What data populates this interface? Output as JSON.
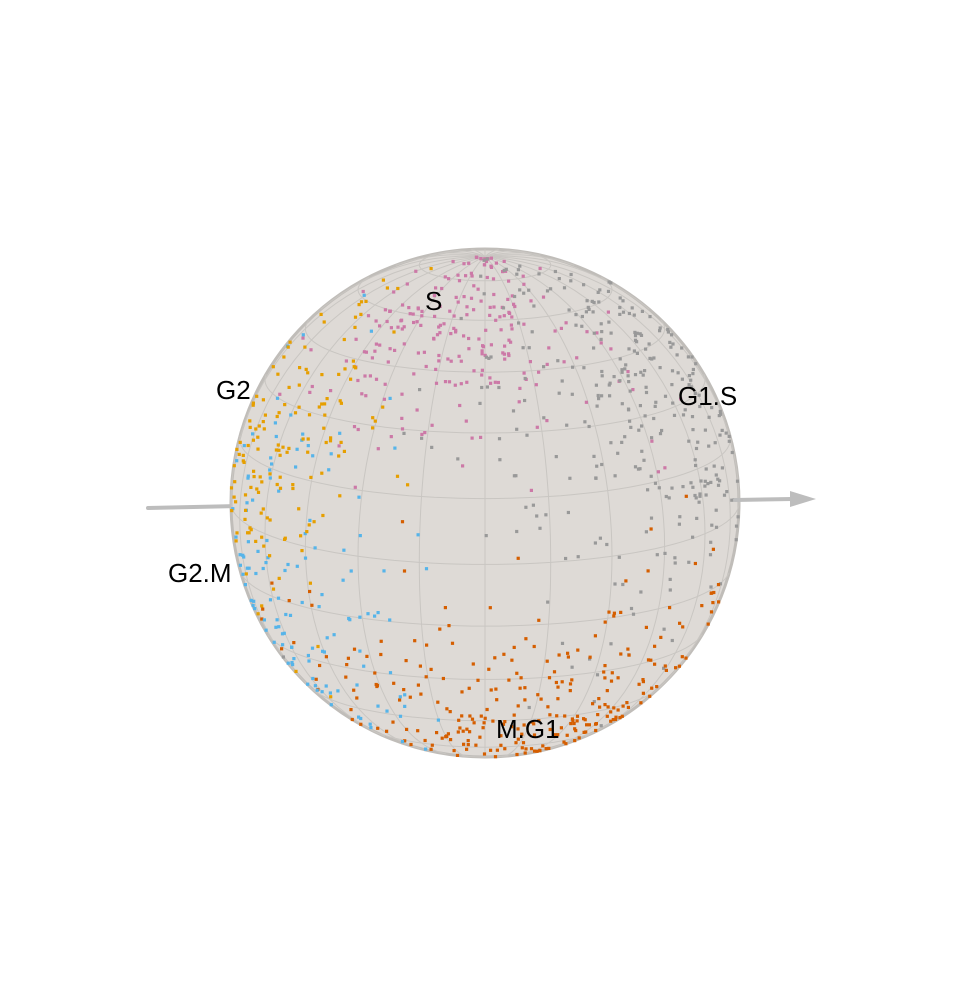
{
  "chart_data": {
    "type": "scatter",
    "subtype": "3d-sphere-projection",
    "title": "",
    "legend": "none",
    "axis_arrow": true,
    "colors": {
      "sphere_fill": "#dedad6",
      "sphere_edge": "#c0bdb9",
      "grid": "#c9c6c2",
      "axis": "#bdbdbd",
      "S": "#cc79a7",
      "G1.S": "#999999",
      "M.G1": "#d55e00",
      "G2.M": "#56b4e9",
      "G2": "#e69f00"
    },
    "phases": [
      {
        "name": "S",
        "label": "S",
        "color": "#cc79a7",
        "center_lon": -10,
        "center_lat": 55,
        "spread_lon": 32,
        "spread_lat": 16,
        "count": 230
      },
      {
        "name": "G1.S",
        "label": "G1.S",
        "color": "#999999",
        "center_lon": 52,
        "center_lat": 28,
        "spread_lon": 30,
        "spread_lat": 26,
        "count": 330
      },
      {
        "name": "M.G1",
        "label": "M.G1",
        "color": "#d55e00",
        "center_lon": 20,
        "center_lat": -42,
        "spread_lon": 42,
        "spread_lat": 18,
        "count": 330
      },
      {
        "name": "G2.M",
        "label": "G2.M",
        "color": "#56b4e9",
        "center_lon": -62,
        "center_lat": -18,
        "spread_lon": 22,
        "spread_lat": 26,
        "count": 160
      },
      {
        "name": "G2",
        "label": "G2",
        "color": "#e69f00",
        "center_lon": -62,
        "center_lat": 20,
        "spread_lon": 16,
        "spread_lat": 20,
        "count": 150
      }
    ],
    "seed": 7
  }
}
